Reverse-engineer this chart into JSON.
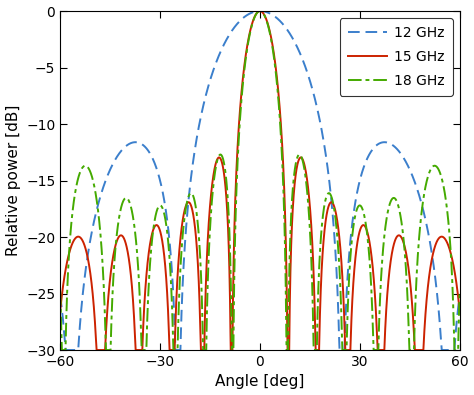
{
  "title": "",
  "xlabel": "Angle [deg]",
  "ylabel": "Relative power [dB]",
  "xlim": [
    -60,
    60
  ],
  "ylim": [
    -30,
    0
  ],
  "yticks": [
    0,
    -5,
    -10,
    -15,
    -20,
    -25,
    -30
  ],
  "xticks": [
    -60,
    -30,
    0,
    30,
    60
  ],
  "legend": [
    {
      "label": "12 GHz",
      "color": "#3B7FCC",
      "linestyle": "--"
    },
    {
      "label": "15 GHz",
      "color": "#CC2200",
      "linestyle": "-"
    },
    {
      "label": "18 GHz",
      "color": "#44AA00",
      "linestyle": "-."
    }
  ],
  "background_color": "#ffffff"
}
